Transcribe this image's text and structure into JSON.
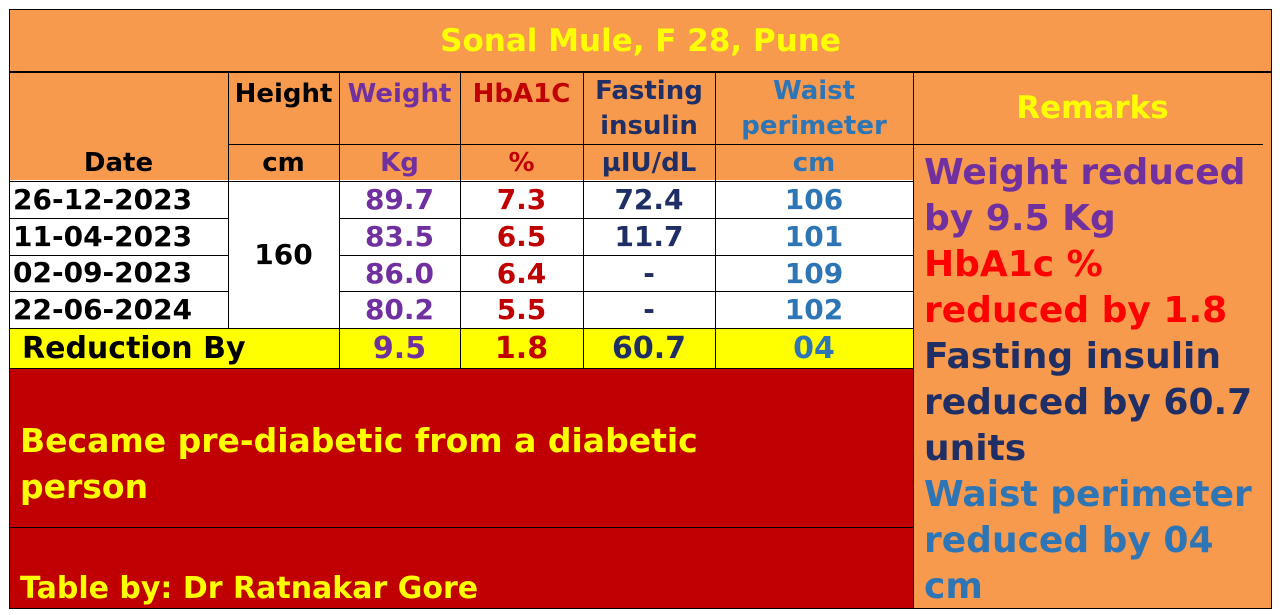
{
  "title": "Sonal Mule, F 28, Pune",
  "columns": {
    "height": {
      "label": "Height",
      "unit": "cm"
    },
    "weight": {
      "label": "Weight",
      "unit": "Kg"
    },
    "hba1c": {
      "label": "HbA1C",
      "unit": "%"
    },
    "insulin": {
      "label": "Fasting insulin",
      "unit": "µIU/dL"
    },
    "waist": {
      "label": "Waist perimeter",
      "unit": "cm"
    },
    "date": {
      "label": "Date"
    },
    "remarks": {
      "label": "Remarks"
    }
  },
  "height_value": "160",
  "rows": [
    {
      "date": "26-12-2023",
      "weight": "89.7",
      "hba1c": "7.3",
      "insulin": "72.4",
      "waist": "106"
    },
    {
      "date": "11-04-2023",
      "weight": "83.5",
      "hba1c": "6.5",
      "insulin": "11.7",
      "waist": "101"
    },
    {
      "date": "02-09-2023",
      "weight": "86.0",
      "hba1c": "6.4",
      "insulin": "-",
      "waist": "109"
    },
    {
      "date": "22-06-2024",
      "weight": "80.2",
      "hba1c": "5.5",
      "insulin": "-",
      "waist": "102"
    }
  ],
  "reduction": {
    "label": "Reduction By",
    "weight": "9.5",
    "hba1c": "1.8",
    "insulin": "60.7",
    "waist": "04"
  },
  "summary": "Became pre-diabetic from a diabetic person",
  "credit": "Table by: Dr Ratnakar Gore",
  "remarks": [
    {
      "text": "Weight reduced by 9.5 Kg",
      "color": "#7030A0"
    },
    {
      "text": "HbA1c % reduced by 1.8",
      "color": "#FF0000"
    },
    {
      "text": "Fasting insulin reduced by 60.7 units",
      "color": "#1F2F66"
    },
    {
      "text": "Waist perimeter reduced by 04 cm",
      "color": "#2E75B6"
    }
  ],
  "colors": {
    "background": "#F79A4E",
    "title": "#FFFF00",
    "highlight_row": "#FFFF00",
    "summary_bg": "#C00000"
  }
}
